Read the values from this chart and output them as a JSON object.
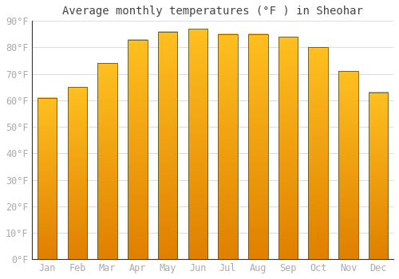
{
  "title": "Average monthly temperatures (°F ) in Sheohar",
  "months": [
    "Jan",
    "Feb",
    "Mar",
    "Apr",
    "May",
    "Jun",
    "Jul",
    "Aug",
    "Sep",
    "Oct",
    "Nov",
    "Dec"
  ],
  "values": [
    61,
    65,
    74,
    83,
    86,
    87,
    85,
    85,
    84,
    80,
    71,
    63
  ],
  "bar_color_top": "#FFC020",
  "bar_color_bottom": "#E08000",
  "bar_border_color": "#555533",
  "ylim": [
    0,
    90
  ],
  "yticks": [
    0,
    10,
    20,
    30,
    40,
    50,
    60,
    70,
    80,
    90
  ],
  "ytick_labels": [
    "0°F",
    "10°F",
    "20°F",
    "30°F",
    "40°F",
    "50°F",
    "60°F",
    "70°F",
    "80°F",
    "90°F"
  ],
  "bg_color": "#ffffff",
  "grid_color": "#dddddd",
  "title_fontsize": 10,
  "tick_fontsize": 8.5,
  "bar_width": 0.65
}
